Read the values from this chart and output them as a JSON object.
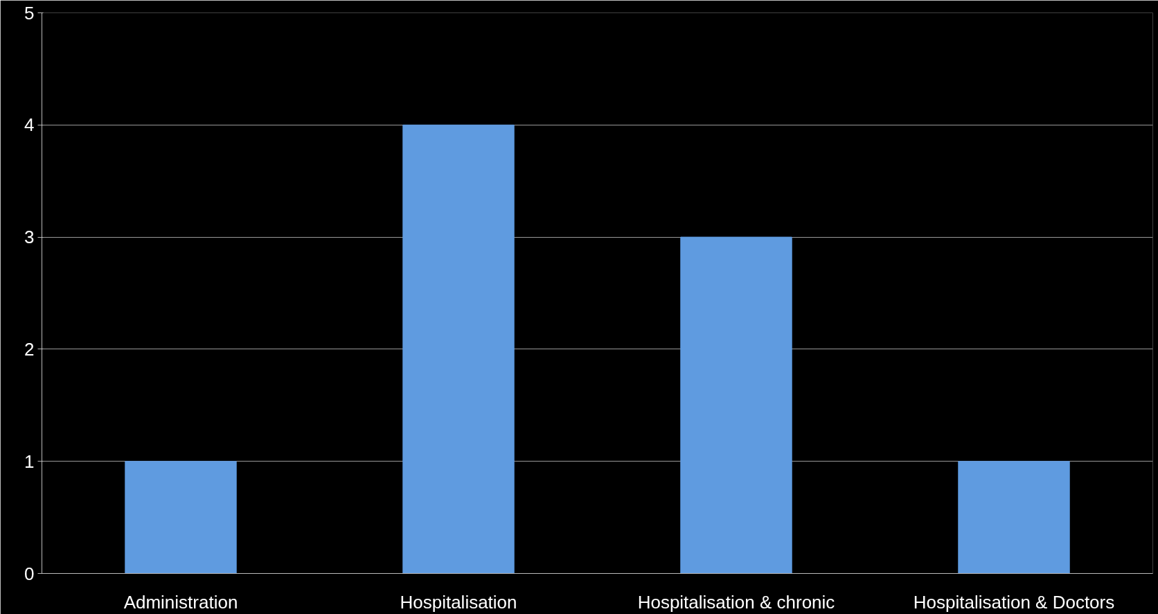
{
  "chart_data": {
    "type": "bar",
    "categories": [
      "Administration",
      "Hospitalisation",
      "Hospitalisation & chronic",
      "Hospitalisation & Doctors"
    ],
    "values": [
      1,
      4,
      3,
      1
    ],
    "color": "#5f9be0",
    "ylim": [
      0,
      5
    ],
    "yticks": [
      0,
      1,
      2,
      3,
      4,
      5
    ],
    "grid": "y"
  }
}
